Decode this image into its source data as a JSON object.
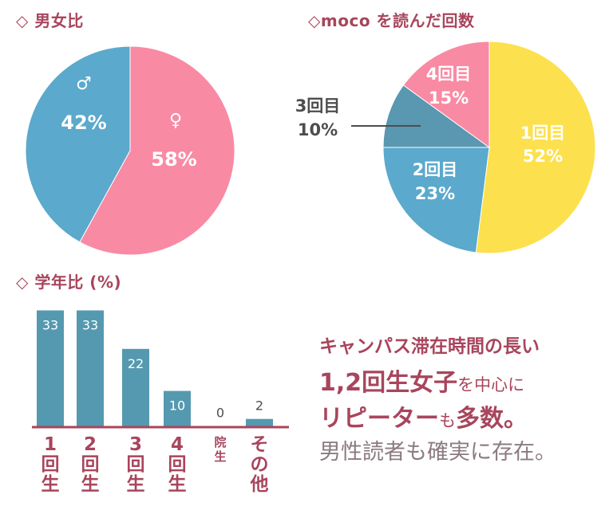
{
  "gender_title": "◇ 男女比",
  "reads_title": "◇moco を読んだ回数",
  "grade_title": "◇ 学年比 (%)",
  "colors": {
    "accent": "#a8455c",
    "pink": "#f98aa3",
    "blue": "#5ba9cc",
    "bar": "#5599b0",
    "yellow": "#fde04d",
    "steel": "#5a97b0",
    "gray_text": "#8b7b81",
    "muted_label": "#4d4d4d"
  },
  "message": {
    "line1": "キャンパス滞在時間の長い",
    "line2_big": "1,2回生女子",
    "line2_small": "を中心に",
    "line3_big": "リピーター",
    "line3_small": "も",
    "line3_big2": "多数。",
    "line4": "男性読者も確実に存在。"
  },
  "chart_data": [
    {
      "type": "pie",
      "title": "男女比",
      "slices": [
        {
          "label": "♀",
          "value": 58,
          "display": "58%",
          "color": "#f98aa3"
        },
        {
          "label": "♂",
          "value": 42,
          "display": "42%",
          "color": "#5ba9cc"
        }
      ]
    },
    {
      "type": "pie",
      "title": "moco を読んだ回数",
      "slices": [
        {
          "label": "1回目",
          "value": 52,
          "display": "52%",
          "color": "#fde04d"
        },
        {
          "label": "2回目",
          "value": 23,
          "display": "23%",
          "color": "#5ba9cc"
        },
        {
          "label": "3回目",
          "value": 10,
          "display": "10%",
          "color": "#5a97b0"
        },
        {
          "label": "4回目",
          "value": 15,
          "display": "15%",
          "color": "#f98aa3"
        }
      ]
    },
    {
      "type": "bar",
      "title": "学年比 (%)",
      "categories": [
        "1回生",
        "2回生",
        "3回生",
        "4回生",
        "院生",
        "その他"
      ],
      "values": [
        33,
        33,
        22,
        10,
        0,
        2
      ],
      "ylim": [
        0,
        35
      ]
    }
  ]
}
